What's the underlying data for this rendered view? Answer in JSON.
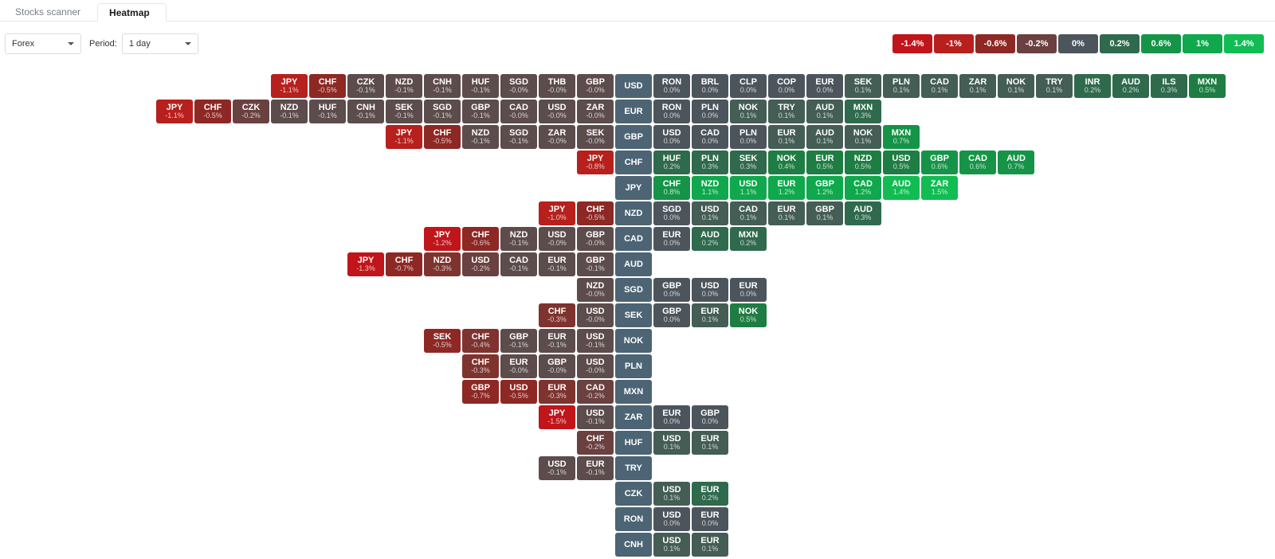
{
  "tabs": {
    "scanner": "Stocks scanner",
    "heatmap": "Heatmap",
    "active": "heatmap"
  },
  "filters": {
    "category": "Forex",
    "periodLabel": "Period:",
    "period": "1 day"
  },
  "colors": {
    "base": "#4c6474",
    "neutral": "#4d555c",
    "scale": [
      {
        "max": -1.2,
        "color": "#c0151a"
      },
      {
        "max": -0.8,
        "color": "#b7201c"
      },
      {
        "max": -0.5,
        "color": "#8d2824"
      },
      {
        "max": -0.3,
        "color": "#7e332f"
      },
      {
        "max": -0.15,
        "color": "#6b4040"
      },
      {
        "max": -0.001,
        "color": "#5d4c4c"
      },
      {
        "max": 0.0001,
        "color": "#4d555c"
      },
      {
        "max": 0.15,
        "color": "#445d55"
      },
      {
        "max": 0.3,
        "color": "#2f6a4d"
      },
      {
        "max": 0.5,
        "color": "#1e7d42"
      },
      {
        "max": 0.8,
        "color": "#159447"
      },
      {
        "max": 1.2,
        "color": "#0fa84c"
      },
      {
        "max": 100,
        "color": "#11bc52"
      }
    ]
  },
  "legend": [
    {
      "label": "-1.4%",
      "color": "#c0151a"
    },
    {
      "label": "-1%",
      "color": "#b7201c"
    },
    {
      "label": "-0.6%",
      "color": "#8d2824"
    },
    {
      "label": "-0.2%",
      "color": "#6b4040"
    },
    {
      "label": "0%",
      "color": "#4d555c"
    },
    {
      "label": "0.2%",
      "color": "#2f6a4d"
    },
    {
      "label": "0.6%",
      "color": "#159447"
    },
    {
      "label": "1%",
      "color": "#0fa84c"
    },
    {
      "label": "1.4%",
      "color": "#11bc52"
    }
  ],
  "rows": [
    {
      "base": "USD",
      "neg": [
        {
          "s": "JPY",
          "v": -1.1
        },
        {
          "s": "CHF",
          "v": -0.5
        },
        {
          "s": "CZK",
          "v": -0.1
        },
        {
          "s": "NZD",
          "v": -0.1
        },
        {
          "s": "CNH",
          "v": -0.1
        },
        {
          "s": "HUF",
          "v": -0.1
        },
        {
          "s": "SGD",
          "v": -0.0
        },
        {
          "s": "THB",
          "v": -0.0
        },
        {
          "s": "GBP",
          "v": -0.0
        }
      ],
      "pos": [
        {
          "s": "RON",
          "v": 0.0
        },
        {
          "s": "BRL",
          "v": 0.0
        },
        {
          "s": "CLP",
          "v": 0.0
        },
        {
          "s": "COP",
          "v": 0.0
        },
        {
          "s": "EUR",
          "v": 0.0
        },
        {
          "s": "SEK",
          "v": 0.1
        },
        {
          "s": "PLN",
          "v": 0.1
        },
        {
          "s": "CAD",
          "v": 0.1
        },
        {
          "s": "ZAR",
          "v": 0.1
        },
        {
          "s": "NOK",
          "v": 0.1
        },
        {
          "s": "TRY",
          "v": 0.1
        },
        {
          "s": "INR",
          "v": 0.2
        },
        {
          "s": "AUD",
          "v": 0.2
        },
        {
          "s": "ILS",
          "v": 0.3
        },
        {
          "s": "MXN",
          "v": 0.5
        }
      ]
    },
    {
      "base": "EUR",
      "neg": [
        {
          "s": "JPY",
          "v": -1.1
        },
        {
          "s": "CHF",
          "v": -0.5
        },
        {
          "s": "CZK",
          "v": -0.2
        },
        {
          "s": "NZD",
          "v": -0.1
        },
        {
          "s": "HUF",
          "v": -0.1
        },
        {
          "s": "CNH",
          "v": -0.1
        },
        {
          "s": "SEK",
          "v": -0.1
        },
        {
          "s": "SGD",
          "v": -0.1
        },
        {
          "s": "GBP",
          "v": -0.1
        },
        {
          "s": "CAD",
          "v": -0.0
        },
        {
          "s": "USD",
          "v": -0.0
        },
        {
          "s": "ZAR",
          "v": -0.0
        }
      ],
      "pos": [
        {
          "s": "RON",
          "v": 0.0
        },
        {
          "s": "PLN",
          "v": 0.0
        },
        {
          "s": "NOK",
          "v": 0.1
        },
        {
          "s": "TRY",
          "v": 0.1
        },
        {
          "s": "AUD",
          "v": 0.1
        },
        {
          "s": "MXN",
          "v": 0.3
        }
      ]
    },
    {
      "base": "GBP",
      "neg": [
        {
          "s": "JPY",
          "v": -1.1
        },
        {
          "s": "CHF",
          "v": -0.5
        },
        {
          "s": "NZD",
          "v": -0.1
        },
        {
          "s": "SGD",
          "v": -0.1
        },
        {
          "s": "ZAR",
          "v": -0.0
        },
        {
          "s": "SEK",
          "v": -0.0
        }
      ],
      "pos": [
        {
          "s": "USD",
          "v": 0.0
        },
        {
          "s": "CAD",
          "v": 0.0
        },
        {
          "s": "PLN",
          "v": 0.0
        },
        {
          "s": "EUR",
          "v": 0.1
        },
        {
          "s": "AUD",
          "v": 0.1
        },
        {
          "s": "NOK",
          "v": 0.1
        },
        {
          "s": "MXN",
          "v": 0.7
        }
      ]
    },
    {
      "base": "CHF",
      "neg": [
        {
          "s": "JPY",
          "v": -0.8
        }
      ],
      "pos": [
        {
          "s": "HUF",
          "v": 0.2
        },
        {
          "s": "PLN",
          "v": 0.3
        },
        {
          "s": "SEK",
          "v": 0.3
        },
        {
          "s": "NOK",
          "v": 0.4
        },
        {
          "s": "EUR",
          "v": 0.5
        },
        {
          "s": "NZD",
          "v": 0.5
        },
        {
          "s": "USD",
          "v": 0.5
        },
        {
          "s": "GBP",
          "v": 0.6
        },
        {
          "s": "CAD",
          "v": 0.6
        },
        {
          "s": "AUD",
          "v": 0.7
        }
      ]
    },
    {
      "base": "JPY",
      "neg": [],
      "pos": [
        {
          "s": "CHF",
          "v": 0.8
        },
        {
          "s": "NZD",
          "v": 1.1
        },
        {
          "s": "USD",
          "v": 1.1
        },
        {
          "s": "EUR",
          "v": 1.2
        },
        {
          "s": "GBP",
          "v": 1.2
        },
        {
          "s": "CAD",
          "v": 1.2
        },
        {
          "s": "AUD",
          "v": 1.4
        },
        {
          "s": "ZAR",
          "v": 1.5
        }
      ]
    },
    {
      "base": "NZD",
      "neg": [
        {
          "s": "JPY",
          "v": -1.0
        },
        {
          "s": "CHF",
          "v": -0.5
        }
      ],
      "pos": [
        {
          "s": "SGD",
          "v": 0.0
        },
        {
          "s": "USD",
          "v": 0.1
        },
        {
          "s": "CAD",
          "v": 0.1
        },
        {
          "s": "EUR",
          "v": 0.1
        },
        {
          "s": "GBP",
          "v": 0.1
        },
        {
          "s": "AUD",
          "v": 0.3
        }
      ]
    },
    {
      "base": "CAD",
      "neg": [
        {
          "s": "JPY",
          "v": -1.2
        },
        {
          "s": "CHF",
          "v": -0.6
        },
        {
          "s": "NZD",
          "v": -0.1
        },
        {
          "s": "USD",
          "v": -0.0
        },
        {
          "s": "GBP",
          "v": -0.0
        }
      ],
      "pos": [
        {
          "s": "EUR",
          "v": 0.0
        },
        {
          "s": "AUD",
          "v": 0.2
        },
        {
          "s": "MXN",
          "v": 0.2
        }
      ]
    },
    {
      "base": "AUD",
      "neg": [
        {
          "s": "JPY",
          "v": -1.3
        },
        {
          "s": "CHF",
          "v": -0.7
        },
        {
          "s": "NZD",
          "v": -0.3
        },
        {
          "s": "USD",
          "v": -0.2
        },
        {
          "s": "CAD",
          "v": -0.1
        },
        {
          "s": "EUR",
          "v": -0.1
        },
        {
          "s": "GBP",
          "v": -0.1
        }
      ],
      "pos": []
    },
    {
      "base": "SGD",
      "neg": [
        {
          "s": "NZD",
          "v": -0.0
        }
      ],
      "pos": [
        {
          "s": "GBP",
          "v": 0.0
        },
        {
          "s": "USD",
          "v": 0.0
        },
        {
          "s": "EUR",
          "v": 0.0
        }
      ]
    },
    {
      "base": "SEK",
      "neg": [
        {
          "s": "CHF",
          "v": -0.3
        },
        {
          "s": "USD",
          "v": -0.0
        }
      ],
      "pos": [
        {
          "s": "GBP",
          "v": 0.0
        },
        {
          "s": "EUR",
          "v": 0.1
        },
        {
          "s": "NOK",
          "v": 0.5
        }
      ]
    },
    {
      "base": "NOK",
      "neg": [
        {
          "s": "SEK",
          "v": -0.5
        },
        {
          "s": "CHF",
          "v": -0.4
        },
        {
          "s": "GBP",
          "v": -0.1
        },
        {
          "s": "EUR",
          "v": -0.1
        },
        {
          "s": "USD",
          "v": -0.1
        }
      ],
      "pos": []
    },
    {
      "base": "PLN",
      "neg": [
        {
          "s": "CHF",
          "v": -0.3
        },
        {
          "s": "EUR",
          "v": -0.0
        },
        {
          "s": "GBP",
          "v": -0.0
        },
        {
          "s": "USD",
          "v": -0.0
        }
      ],
      "pos": []
    },
    {
      "base": "MXN",
      "neg": [
        {
          "s": "GBP",
          "v": -0.7
        },
        {
          "s": "USD",
          "v": -0.5
        },
        {
          "s": "EUR",
          "v": -0.3
        },
        {
          "s": "CAD",
          "v": -0.2
        }
      ],
      "pos": []
    },
    {
      "base": "ZAR",
      "neg": [
        {
          "s": "JPY",
          "v": -1.5
        },
        {
          "s": "USD",
          "v": -0.1
        }
      ],
      "pos": [
        {
          "s": "EUR",
          "v": 0.0
        },
        {
          "s": "GBP",
          "v": 0.0
        }
      ]
    },
    {
      "base": "HUF",
      "neg": [
        {
          "s": "CHF",
          "v": -0.2
        }
      ],
      "pos": [
        {
          "s": "USD",
          "v": 0.1
        },
        {
          "s": "EUR",
          "v": 0.1
        }
      ]
    },
    {
      "base": "TRY",
      "neg": [
        {
          "s": "USD",
          "v": -0.1
        },
        {
          "s": "EUR",
          "v": -0.1
        }
      ],
      "pos": []
    },
    {
      "base": "CZK",
      "neg": [],
      "pos": [
        {
          "s": "USD",
          "v": 0.1
        },
        {
          "s": "EUR",
          "v": 0.2
        }
      ]
    },
    {
      "base": "RON",
      "neg": [],
      "pos": [
        {
          "s": "USD",
          "v": 0.0
        },
        {
          "s": "EUR",
          "v": 0.0
        }
      ]
    },
    {
      "base": "CNH",
      "neg": [],
      "pos": [
        {
          "s": "USD",
          "v": 0.1
        },
        {
          "s": "EUR",
          "v": 0.1
        }
      ]
    }
  ]
}
